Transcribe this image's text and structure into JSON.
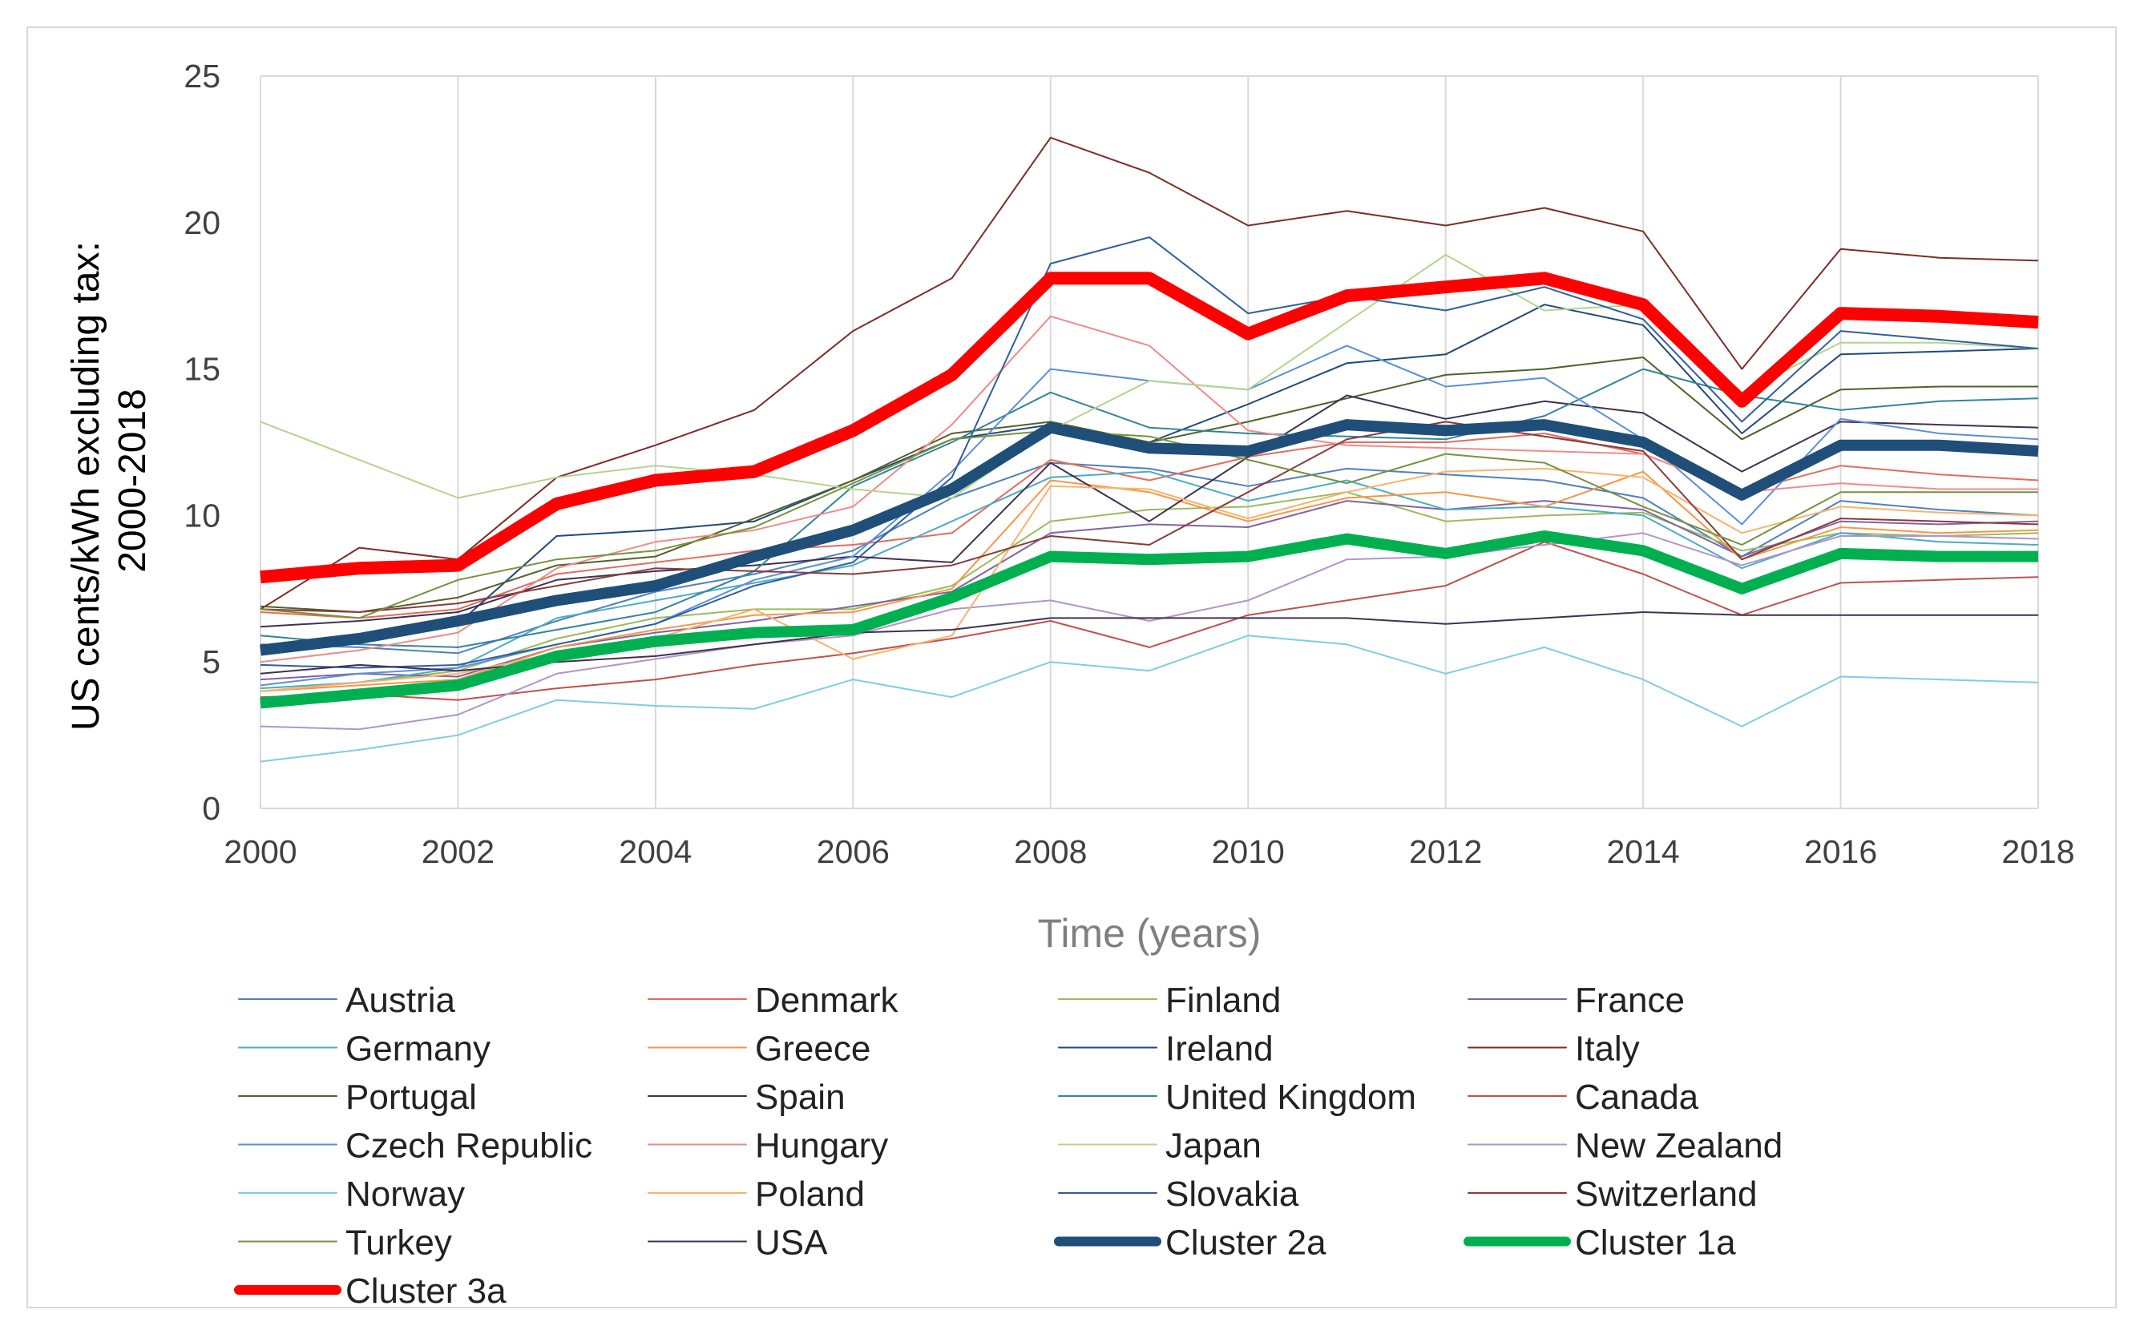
{
  "chart_data": {
    "type": "line",
    "title": "",
    "xlabel": "Time (years)",
    "ylabel_lines": [
      "US cents/kWh  excluding tax:",
      "2000-2018"
    ],
    "x": [
      2000,
      2001,
      2002,
      2003,
      2004,
      2005,
      2006,
      2007,
      2008,
      2009,
      2010,
      2011,
      2012,
      2013,
      2014,
      2015,
      2016,
      2017,
      2018
    ],
    "x_ticks": [
      "2000",
      "2002",
      "2004",
      "2006",
      "2008",
      "2010",
      "2012",
      "2014",
      "2016",
      "2018"
    ],
    "y_ticks": [
      "0",
      "5",
      "10",
      "15",
      "20",
      "25"
    ],
    "ylim": [
      0,
      25
    ],
    "grid": "vertical",
    "legend_position": "bottom",
    "series": [
      {
        "name": "Austria",
        "color": "#4f81bd",
        "width": 2,
        "values": [
          5.6,
          5.5,
          5.3,
          6.4,
          7.4,
          8.0,
          8.8,
          10.6,
          11.8,
          11.6,
          11.0,
          11.6,
          11.4,
          11.2,
          10.6,
          8.6,
          10.5,
          10.2,
          10.0
        ]
      },
      {
        "name": "Denmark",
        "color": "#e46c5a",
        "width": 2,
        "values": [
          6.7,
          6.5,
          6.8,
          8.0,
          8.4,
          8.8,
          9.0,
          9.4,
          11.9,
          11.2,
          12.0,
          12.5,
          12.5,
          12.8,
          12.1,
          10.8,
          11.7,
          11.4,
          11.2
        ]
      },
      {
        "name": "Finland",
        "color": "#9bbb59",
        "width": 2,
        "values": [
          4.0,
          4.3,
          4.7,
          5.8,
          6.5,
          6.8,
          6.8,
          7.6,
          9.8,
          10.2,
          10.3,
          10.8,
          9.8,
          10.0,
          10.1,
          8.8,
          9.4,
          9.3,
          9.4
        ]
      },
      {
        "name": "France",
        "color": "#8064a2",
        "width": 2,
        "values": [
          4.4,
          4.6,
          4.5,
          5.5,
          6.0,
          6.4,
          6.9,
          7.4,
          9.4,
          9.7,
          9.6,
          10.5,
          10.2,
          10.5,
          10.2,
          8.6,
          9.8,
          9.7,
          9.8
        ]
      },
      {
        "name": "Germany",
        "color": "#4bacc6",
        "width": 2,
        "values": [
          4.1,
          4.3,
          4.8,
          6.5,
          7.1,
          7.7,
          8.3,
          9.8,
          11.3,
          11.5,
          10.5,
          11.2,
          10.2,
          10.3,
          10.0,
          8.2,
          9.4,
          9.1,
          9.0
        ]
      },
      {
        "name": "Greece",
        "color": "#f79646",
        "width": 2,
        "values": [
          4.0,
          4.2,
          4.4,
          5.5,
          6.1,
          6.6,
          6.7,
          7.5,
          11.2,
          10.8,
          9.8,
          10.6,
          10.8,
          10.3,
          11.5,
          8.5,
          9.6,
          9.4,
          9.5
        ]
      },
      {
        "name": "Ireland",
        "color": "#1f497d",
        "width": 2,
        "values": [
          5.5,
          5.8,
          6.3,
          9.3,
          9.5,
          9.8,
          11.2,
          12.6,
          13.1,
          12.5,
          13.8,
          15.2,
          15.5,
          17.2,
          16.5,
          12.8,
          15.5,
          15.6,
          15.7
        ]
      },
      {
        "name": "Italy",
        "color": "#7b2d26",
        "width": 2,
        "values": [
          6.8,
          8.9,
          8.5,
          11.3,
          12.4,
          13.6,
          16.3,
          18.1,
          22.9,
          21.7,
          19.9,
          20.4,
          19.9,
          20.5,
          19.7,
          15.0,
          19.1,
          18.8,
          18.7
        ]
      },
      {
        "name": "Portugal",
        "color": "#4f6228",
        "width": 2,
        "values": [
          6.9,
          6.7,
          7.2,
          8.3,
          8.6,
          9.9,
          11.2,
          12.8,
          13.2,
          12.5,
          13.2,
          14.0,
          14.8,
          15.0,
          15.4,
          12.6,
          14.3,
          14.4,
          14.4
        ]
      },
      {
        "name": "Spain",
        "color": "#3f3151",
        "width": 2,
        "values": [
          6.2,
          6.4,
          6.7,
          7.8,
          8.1,
          8.3,
          8.6,
          8.4,
          11.8,
          9.8,
          12.0,
          14.1,
          13.3,
          13.9,
          13.5,
          11.5,
          13.2,
          13.1,
          13.0
        ]
      },
      {
        "name": "United Kingdom",
        "color": "#31859c",
        "width": 2,
        "values": [
          5.9,
          5.6,
          5.5,
          6.1,
          6.7,
          8.1,
          11.0,
          12.5,
          14.2,
          13.0,
          12.8,
          12.7,
          12.6,
          13.4,
          15.0,
          14.1,
          13.6,
          13.9,
          14.0
        ]
      },
      {
        "name": "Canada",
        "color": "#c0504d",
        "width": 2,
        "values": [
          3.8,
          3.9,
          3.7,
          4.1,
          4.4,
          4.9,
          5.3,
          5.8,
          6.4,
          5.5,
          6.6,
          7.1,
          7.6,
          9.1,
          8.0,
          6.6,
          7.7,
          7.8,
          7.9
        ]
      },
      {
        "name": "Czech Republic",
        "color": "#5b8fd9",
        "width": 2,
        "values": [
          4.2,
          4.6,
          4.8,
          5.6,
          6.3,
          7.8,
          8.6,
          11.5,
          15.0,
          14.6,
          14.3,
          15.8,
          14.4,
          14.7,
          12.6,
          9.7,
          13.3,
          12.8,
          12.6
        ]
      },
      {
        "name": "Hungary",
        "color": "#f08a8a",
        "width": 2,
        "values": [
          5.0,
          5.4,
          6.0,
          8.2,
          9.1,
          9.5,
          10.3,
          13.1,
          16.8,
          15.8,
          12.9,
          12.4,
          12.3,
          12.2,
          12.1,
          10.8,
          11.1,
          10.9,
          10.9
        ]
      },
      {
        "name": "Japan",
        "color": "#b5d48c",
        "width": 2,
        "values": [
          13.2,
          11.9,
          10.6,
          11.3,
          11.7,
          11.4,
          10.9,
          10.6,
          12.9,
          14.6,
          14.3,
          16.6,
          18.9,
          17.0,
          17.2,
          14.2,
          15.9,
          15.9,
          15.7
        ]
      },
      {
        "name": "New Zealand",
        "color": "#b294cc",
        "width": 2,
        "values": [
          2.8,
          2.7,
          3.2,
          4.6,
          5.1,
          5.6,
          5.9,
          6.8,
          7.1,
          6.4,
          7.1,
          8.5,
          8.6,
          9.0,
          9.4,
          8.3,
          9.3,
          9.3,
          9.2
        ]
      },
      {
        "name": "Norway",
        "color": "#7fcde2",
        "width": 2,
        "values": [
          1.6,
          2.0,
          2.5,
          3.7,
          3.5,
          3.4,
          4.4,
          3.8,
          5.0,
          4.7,
          5.9,
          5.6,
          4.6,
          5.5,
          4.4,
          2.8,
          4.5,
          4.4,
          4.3
        ]
      },
      {
        "name": "Poland",
        "color": "#fab26b",
        "width": 2,
        "values": [
          4.0,
          4.3,
          4.6,
          5.3,
          5.8,
          6.8,
          5.1,
          5.9,
          11.0,
          10.9,
          9.9,
          10.8,
          11.5,
          11.6,
          11.3,
          9.4,
          10.3,
          10.1,
          10.0
        ]
      },
      {
        "name": "Slovakia",
        "color": "#2e5f9e",
        "width": 2,
        "values": [
          4.9,
          4.8,
          4.9,
          5.6,
          6.3,
          7.6,
          8.4,
          11.3,
          18.6,
          19.5,
          16.9,
          17.5,
          17.0,
          17.8,
          16.7,
          13.2,
          16.3,
          16.0,
          15.7
        ]
      },
      {
        "name": "Switzerland",
        "color": "#8b3a3a",
        "width": 2,
        "values": [
          6.8,
          6.7,
          7.0,
          7.6,
          8.2,
          8.1,
          8.0,
          8.3,
          9.3,
          9.0,
          10.8,
          12.6,
          13.2,
          12.7,
          12.2,
          8.5,
          9.9,
          9.8,
          9.7
        ]
      },
      {
        "name": "Turkey",
        "color": "#76923c",
        "width": 2,
        "values": [
          6.8,
          6.5,
          7.8,
          8.5,
          8.8,
          9.6,
          11.1,
          12.6,
          12.9,
          12.7,
          11.9,
          11.1,
          12.1,
          11.8,
          10.3,
          9.0,
          10.8,
          10.8,
          10.8
        ]
      },
      {
        "name": "USA",
        "color": "#403151",
        "width": 2,
        "values": [
          4.6,
          4.9,
          4.7,
          5.0,
          5.2,
          5.6,
          6.0,
          6.1,
          6.5,
          6.5,
          6.5,
          6.5,
          6.3,
          6.5,
          6.7,
          6.6,
          6.6,
          6.6,
          6.6
        ]
      },
      {
        "name": "Cluster 2a",
        "color": "#1f4e79",
        "width": 14,
        "values": [
          5.4,
          5.8,
          6.4,
          7.1,
          7.6,
          8.6,
          9.5,
          10.9,
          13.0,
          12.3,
          12.2,
          13.1,
          12.9,
          13.1,
          12.5,
          10.7,
          12.4,
          12.4,
          12.2
        ]
      },
      {
        "name": "Cluster 1a",
        "color": "#00b050",
        "width": 14,
        "values": [
          3.6,
          3.9,
          4.2,
          5.2,
          5.7,
          6.0,
          6.1,
          7.2,
          8.6,
          8.5,
          8.6,
          9.2,
          8.7,
          9.3,
          8.8,
          7.5,
          8.7,
          8.6,
          8.6
        ]
      },
      {
        "name": "Cluster 3a",
        "color": "#ff0000",
        "width": 16,
        "values": [
          7.9,
          8.2,
          8.3,
          10.4,
          11.2,
          11.5,
          12.9,
          14.8,
          18.1,
          18.1,
          16.2,
          17.5,
          17.8,
          18.1,
          17.2,
          13.9,
          16.9,
          16.8,
          16.6
        ]
      }
    ]
  }
}
